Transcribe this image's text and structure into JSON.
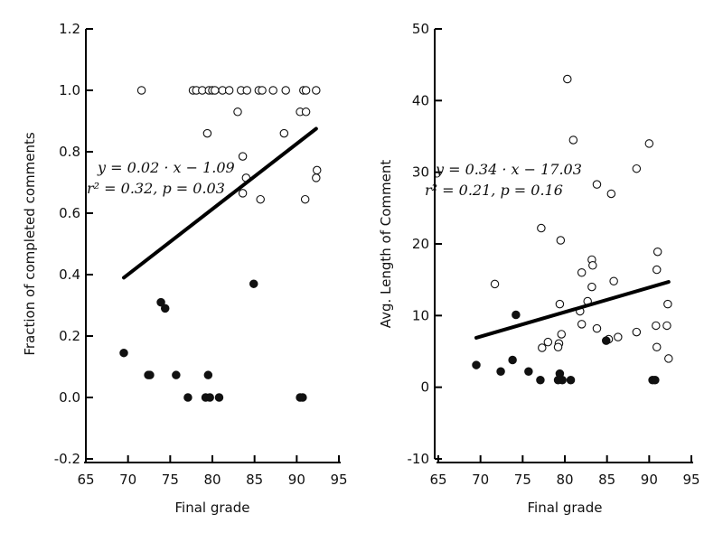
{
  "chart_data": [
    {
      "type": "scatter",
      "title": "",
      "xlabel": "Final grade",
      "ylabel": "Fraction of completed comments",
      "xlim": [
        65,
        95
      ],
      "ylim": [
        -0.2,
        1.2
      ],
      "xticks": [
        65,
        70,
        75,
        80,
        85,
        90,
        95
      ],
      "yticks": [
        -0.2,
        0.0,
        0.2,
        0.4,
        0.6,
        0.8,
        1.0,
        1.2
      ],
      "ytick_labels": [
        "-0.2",
        "0.0",
        "0.2",
        "0.4",
        "0.6",
        "0.8",
        "1.0",
        "1.2"
      ],
      "grid": false,
      "fit_line": {
        "slope": 0.02,
        "intercept": -1.09,
        "x_range": [
          69.5,
          92.3
        ],
        "y_range": [
          0.39,
          0.875
        ]
      },
      "annotation": {
        "line1": "y = 0.02 · x − 1.09",
        "line2": "r² = 0.32, p = 0.03"
      },
      "series": [
        {
          "marker": "open-circle",
          "points": [
            [
              71.6,
              1.0
            ],
            [
              77.7,
              1.0
            ],
            [
              78.1,
              1.0
            ],
            [
              78.8,
              1.0
            ],
            [
              79.6,
              1.0
            ],
            [
              80.0,
              1.0
            ],
            [
              80.3,
              1.0
            ],
            [
              81.2,
              1.0
            ],
            [
              82.0,
              1.0
            ],
            [
              83.4,
              1.0
            ],
            [
              84.1,
              1.0
            ],
            [
              85.5,
              1.0
            ],
            [
              85.9,
              1.0
            ],
            [
              87.2,
              1.0
            ],
            [
              88.7,
              1.0
            ],
            [
              90.8,
              1.0
            ],
            [
              91.1,
              1.0
            ],
            [
              92.3,
              1.0
            ],
            [
              83.0,
              0.93
            ],
            [
              90.4,
              0.93
            ],
            [
              91.1,
              0.93
            ],
            [
              79.4,
              0.86
            ],
            [
              88.5,
              0.86
            ],
            [
              83.6,
              0.785
            ],
            [
              92.4,
              0.74
            ],
            [
              92.3,
              0.715
            ],
            [
              84.0,
              0.715
            ],
            [
              83.6,
              0.665
            ],
            [
              85.7,
              0.645
            ],
            [
              91.0,
              0.645
            ]
          ]
        },
        {
          "marker": "filled-circle",
          "points": [
            [
              84.9,
              0.37
            ],
            [
              73.9,
              0.31
            ],
            [
              74.4,
              0.29
            ],
            [
              69.5,
              0.145
            ],
            [
              72.4,
              0.073
            ],
            [
              72.6,
              0.073
            ],
            [
              75.7,
              0.073
            ],
            [
              79.5,
              0.073
            ],
            [
              77.1,
              0.0
            ],
            [
              79.2,
              0.0
            ],
            [
              79.7,
              0.0
            ],
            [
              80.8,
              0.0
            ],
            [
              90.4,
              0.0
            ],
            [
              90.7,
              0.0
            ]
          ]
        }
      ]
    },
    {
      "type": "scatter",
      "title": "",
      "xlabel": "Final grade",
      "ylabel": "Avg. Length of Comment",
      "xlim": [
        65,
        95
      ],
      "ylim": [
        -10,
        50
      ],
      "xticks": [
        65,
        70,
        75,
        80,
        85,
        90,
        95
      ],
      "yticks": [
        -10,
        0,
        10,
        20,
        30,
        40,
        50
      ],
      "ytick_labels": [
        "-10",
        "0",
        "10",
        "20",
        "30",
        "40",
        "50"
      ],
      "grid": false,
      "fit_line": {
        "slope": 0.34,
        "intercept": -17.03,
        "x_range": [
          69.5,
          92.3
        ],
        "y_range": [
          6.9,
          14.7
        ]
      },
      "annotation": {
        "line1": "y = 0.34 · x − 17.03",
        "line2": "r² = 0.21, p = 0.16"
      },
      "series": [
        {
          "marker": "open-circle",
          "points": [
            [
              80.3,
              43.0
            ],
            [
              81.0,
              34.5
            ],
            [
              90.0,
              34.0
            ],
            [
              88.5,
              30.5
            ],
            [
              83.8,
              28.3
            ],
            [
              85.5,
              27.0
            ],
            [
              77.2,
              22.2
            ],
            [
              79.5,
              20.5
            ],
            [
              91.0,
              18.9
            ],
            [
              83.2,
              17.8
            ],
            [
              83.3,
              17.0
            ],
            [
              90.9,
              16.4
            ],
            [
              82.0,
              16.0
            ],
            [
              85.8,
              14.8
            ],
            [
              71.7,
              14.4
            ],
            [
              83.2,
              14.0
            ],
            [
              82.7,
              12.0
            ],
            [
              79.4,
              11.6
            ],
            [
              92.2,
              11.6
            ],
            [
              81.8,
              10.6
            ],
            [
              82.0,
              8.8
            ],
            [
              90.8,
              8.6
            ],
            [
              92.1,
              8.6
            ],
            [
              83.8,
              8.2
            ],
            [
              88.5,
              7.7
            ],
            [
              79.6,
              7.4
            ],
            [
              86.3,
              7.0
            ],
            [
              85.2,
              6.7
            ],
            [
              78.0,
              6.3
            ],
            [
              79.3,
              6.1
            ],
            [
              79.2,
              5.6
            ],
            [
              77.3,
              5.5
            ],
            [
              90.9,
              5.6
            ],
            [
              92.3,
              4.0
            ]
          ]
        },
        {
          "marker": "filled-circle",
          "points": [
            [
              74.2,
              10.1
            ],
            [
              84.9,
              6.5
            ],
            [
              69.5,
              3.1
            ],
            [
              73.8,
              3.8
            ],
            [
              72.4,
              2.2
            ],
            [
              75.7,
              2.2
            ],
            [
              79.4,
              1.9
            ],
            [
              77.1,
              1.0
            ],
            [
              79.2,
              1.0
            ],
            [
              79.7,
              1.0
            ],
            [
              80.7,
              1.0
            ],
            [
              90.4,
              1.0
            ],
            [
              90.7,
              1.0
            ]
          ]
        }
      ]
    }
  ]
}
